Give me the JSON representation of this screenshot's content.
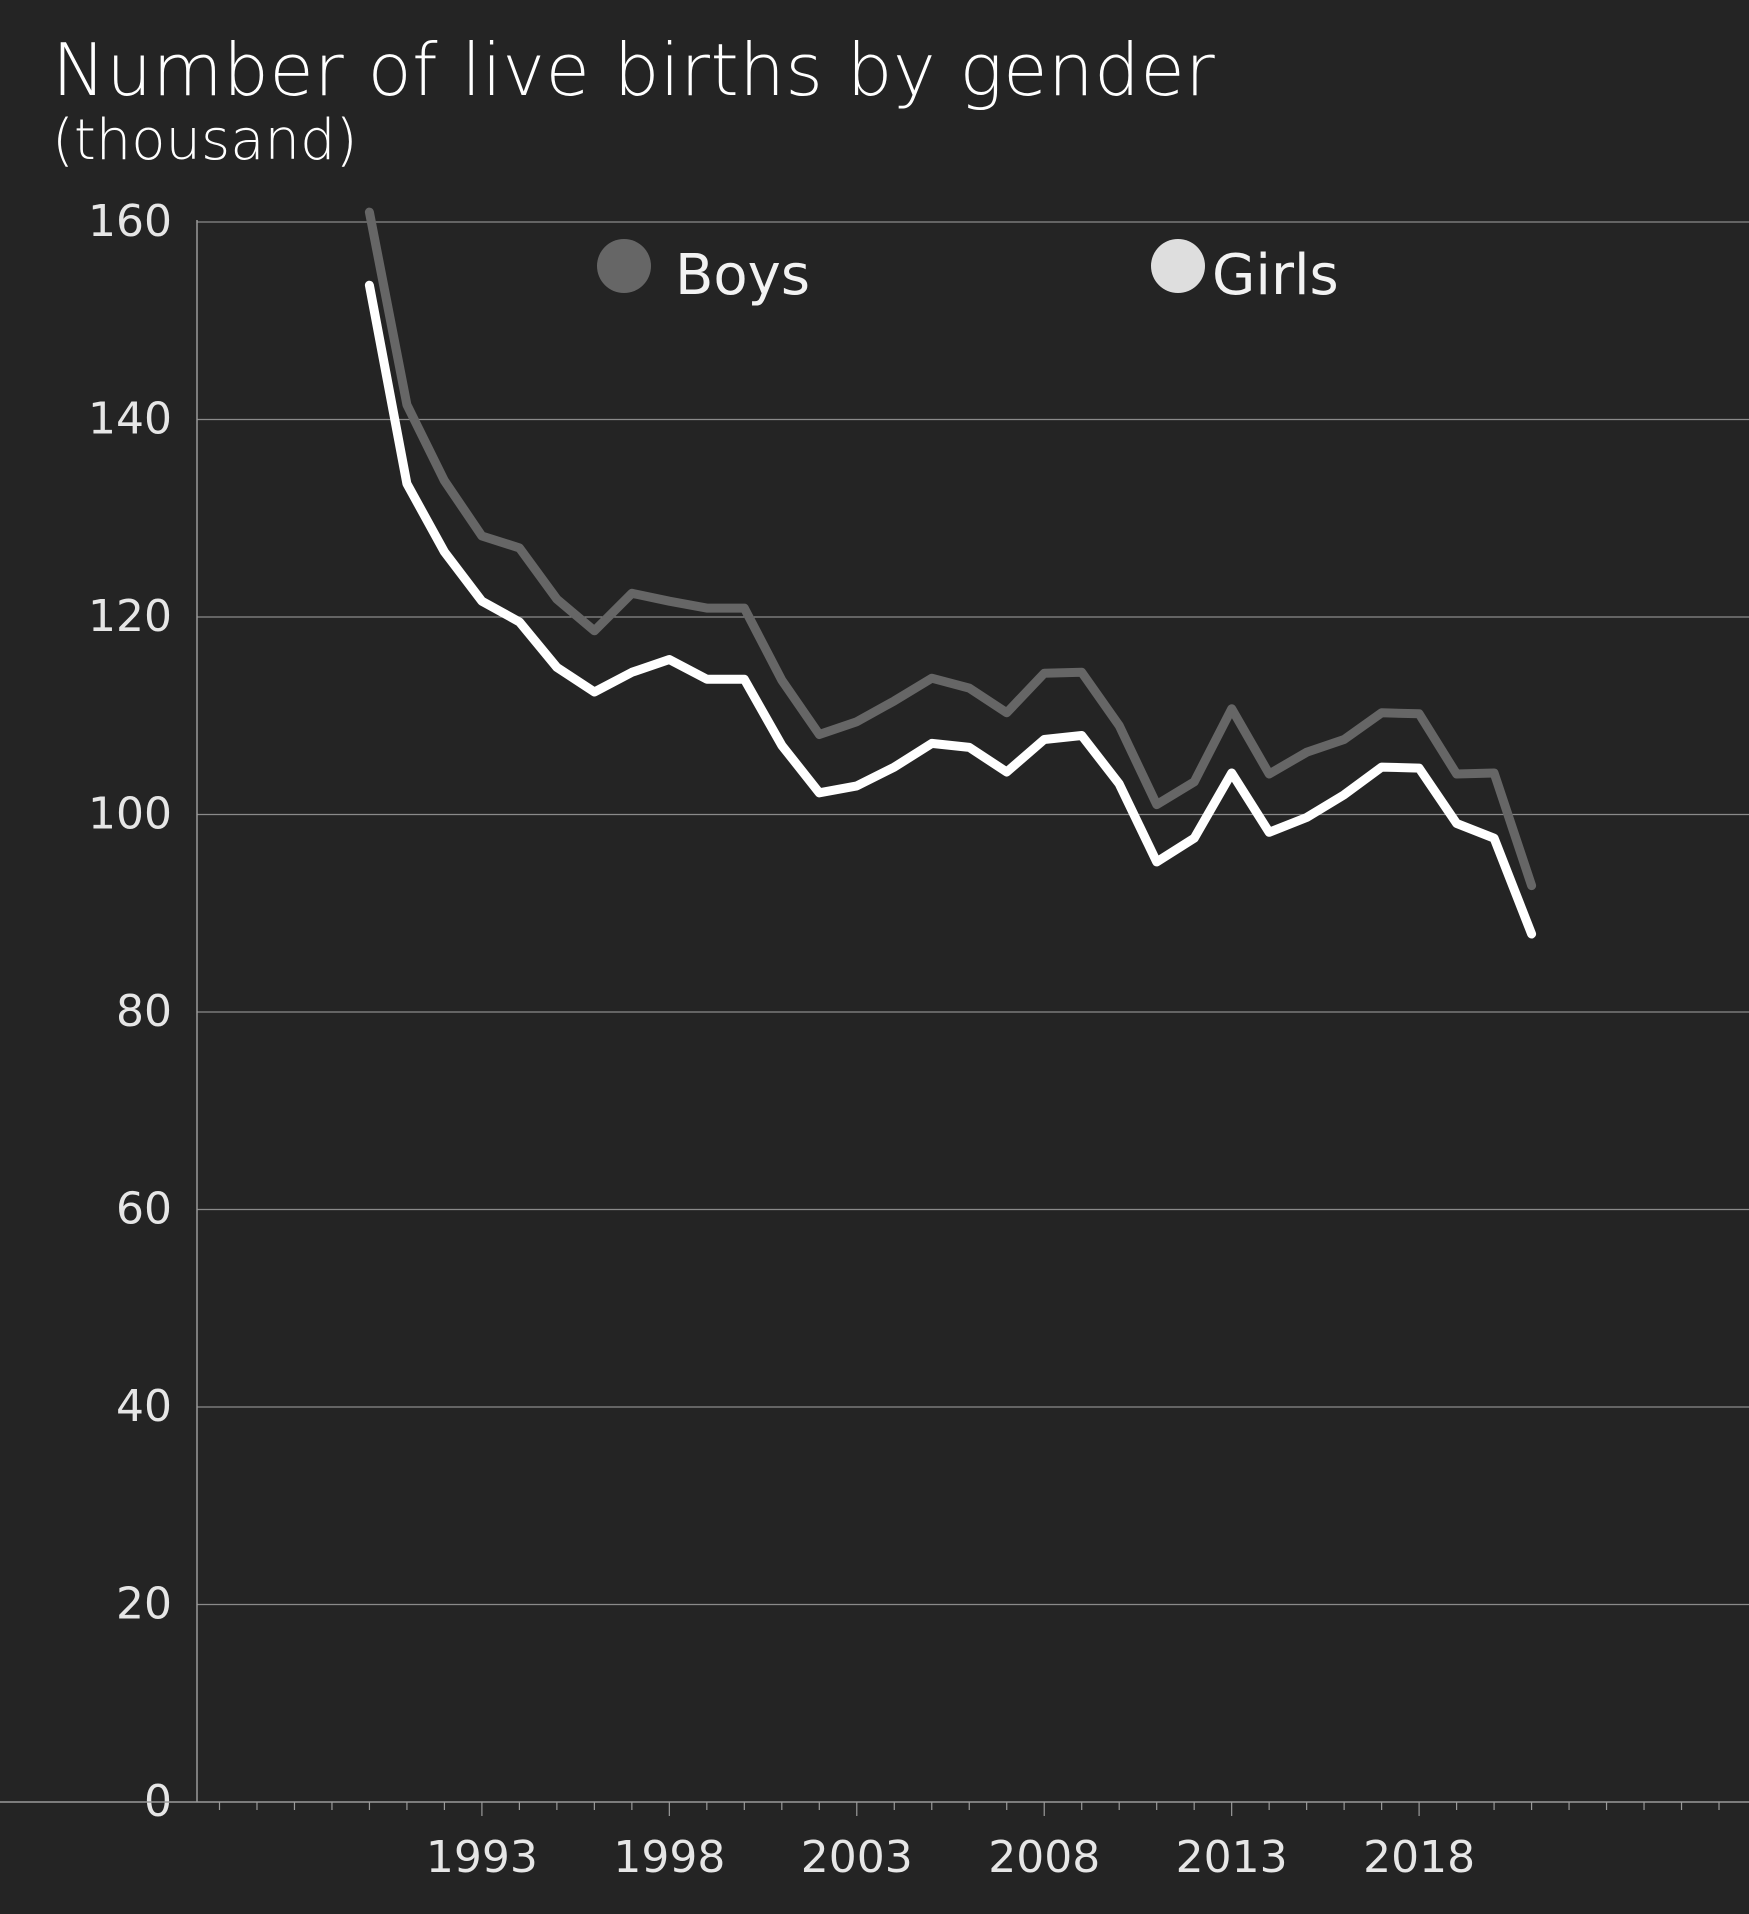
{
  "title": "Number of live births by gender",
  "subtitle": "(thousand)",
  "chart_data": {
    "type": "line",
    "title": "Number of live births by gender",
    "subtitle": "(thousand)",
    "xlabel": "",
    "ylabel": "",
    "x": [
      1990,
      1991,
      1992,
      1993,
      1994,
      1995,
      1996,
      1997,
      1998,
      1999,
      2000,
      2001,
      2002,
      2003,
      2004,
      2005,
      2006,
      2007,
      2008,
      2009,
      2010,
      2011,
      2012,
      2013,
      2014,
      2015,
      2016,
      2017,
      2018,
      2019,
      2020,
      2021
    ],
    "x_ticks": [
      1993,
      1998,
      2003,
      2008,
      2013,
      2018
    ],
    "y_ticks": [
      0,
      20,
      40,
      60,
      80,
      100,
      120,
      140,
      160
    ],
    "xlim": [
      1985.4,
      2026.8
    ],
    "ylim": [
      0,
      160
    ],
    "grid": true,
    "legend_position": "top",
    "series": [
      {
        "name": "Boys",
        "color": "#666666",
        "values": [
          161.0,
          141.5,
          133.8,
          128.2,
          127.0,
          121.8,
          118.6,
          122.4,
          121.6,
          120.9,
          120.9,
          113.6,
          108.1,
          109.4,
          111.5,
          113.8,
          112.8,
          110.3,
          114.3,
          114.4,
          109.0,
          101.0,
          103.3,
          110.7,
          104.1,
          106.3,
          107.6,
          110.3,
          110.2,
          104.1,
          104.2,
          92.8
        ]
      },
      {
        "name": "Girls",
        "color": "#ffffff",
        "values": [
          153.6,
          133.5,
          126.6,
          121.6,
          119.5,
          114.9,
          112.4,
          114.4,
          115.7,
          113.7,
          113.7,
          107.0,
          102.2,
          102.9,
          104.8,
          107.2,
          106.8,
          104.3,
          107.6,
          108.0,
          103.1,
          95.2,
          97.6,
          104.2,
          98.2,
          99.7,
          102.0,
          104.8,
          104.7,
          99.1,
          97.6,
          87.9
        ]
      }
    ]
  }
}
